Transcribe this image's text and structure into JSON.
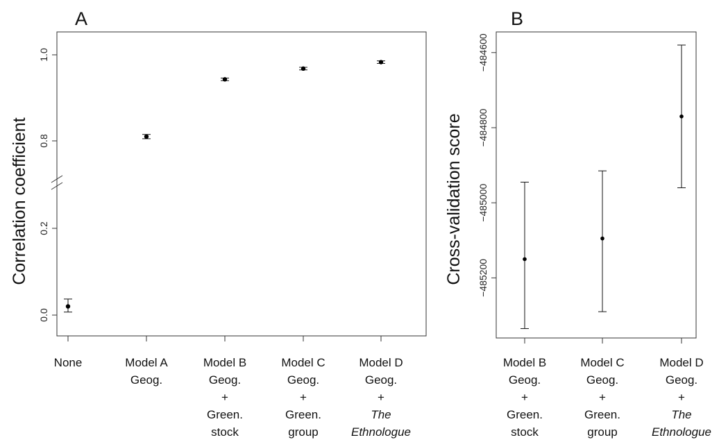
{
  "chart_data": [
    {
      "panel": "A",
      "type": "scatter",
      "ylabel": "Correlation coefficient",
      "y_ticks": [
        "0.0",
        "0.2",
        "0.8",
        "1.0"
      ],
      "axis_break": true,
      "categories": [
        {
          "lines": [
            "None"
          ]
        },
        {
          "lines": [
            "Model A",
            "Geog."
          ]
        },
        {
          "lines": [
            "Model B",
            "Geog.",
            "+",
            "Green.",
            "stock"
          ]
        },
        {
          "lines": [
            "Model C",
            "Geog.",
            "+",
            "Green.",
            "group"
          ]
        },
        {
          "lines": [
            "Model D",
            "Geog.",
            "+",
            "The",
            "Ethnologue"
          ],
          "italic_lines": [
            3,
            4
          ]
        }
      ],
      "points": [
        {
          "y": 0.02,
          "lo": 0.007,
          "hi": 0.037
        },
        {
          "y": 0.81,
          "lo": 0.805,
          "hi": 0.815
        },
        {
          "y": 0.943,
          "lo": 0.94,
          "hi": 0.946
        },
        {
          "y": 0.968,
          "lo": 0.965,
          "hi": 0.971
        },
        {
          "y": 0.983,
          "lo": 0.98,
          "hi": 0.986
        }
      ]
    },
    {
      "panel": "B",
      "type": "scatter",
      "ylabel": "Cross-validation score",
      "y_ticks": [
        -485200,
        -485000,
        -484800,
        -484600
      ],
      "y_tick_labels": [
        "−485200",
        "−485000",
        "−484800",
        "−484600"
      ],
      "ylim": [
        -485360,
        -484545
      ],
      "categories": [
        {
          "lines": [
            "Model B",
            "Geog.",
            "+",
            "Green.",
            "stock"
          ]
        },
        {
          "lines": [
            "Model C",
            "Geog.",
            "+",
            "Green.",
            "group"
          ]
        },
        {
          "lines": [
            "Model D",
            "Geog.",
            "+",
            "The",
            "Ethnologue"
          ],
          "italic_lines": [
            3,
            4
          ]
        }
      ],
      "points": [
        {
          "y": -485150,
          "lo": -485335,
          "hi": -484945
        },
        {
          "y": -485095,
          "lo": -485290,
          "hi": -484915
        },
        {
          "y": -484770,
          "lo": -484960,
          "hi": -484580
        }
      ]
    }
  ]
}
